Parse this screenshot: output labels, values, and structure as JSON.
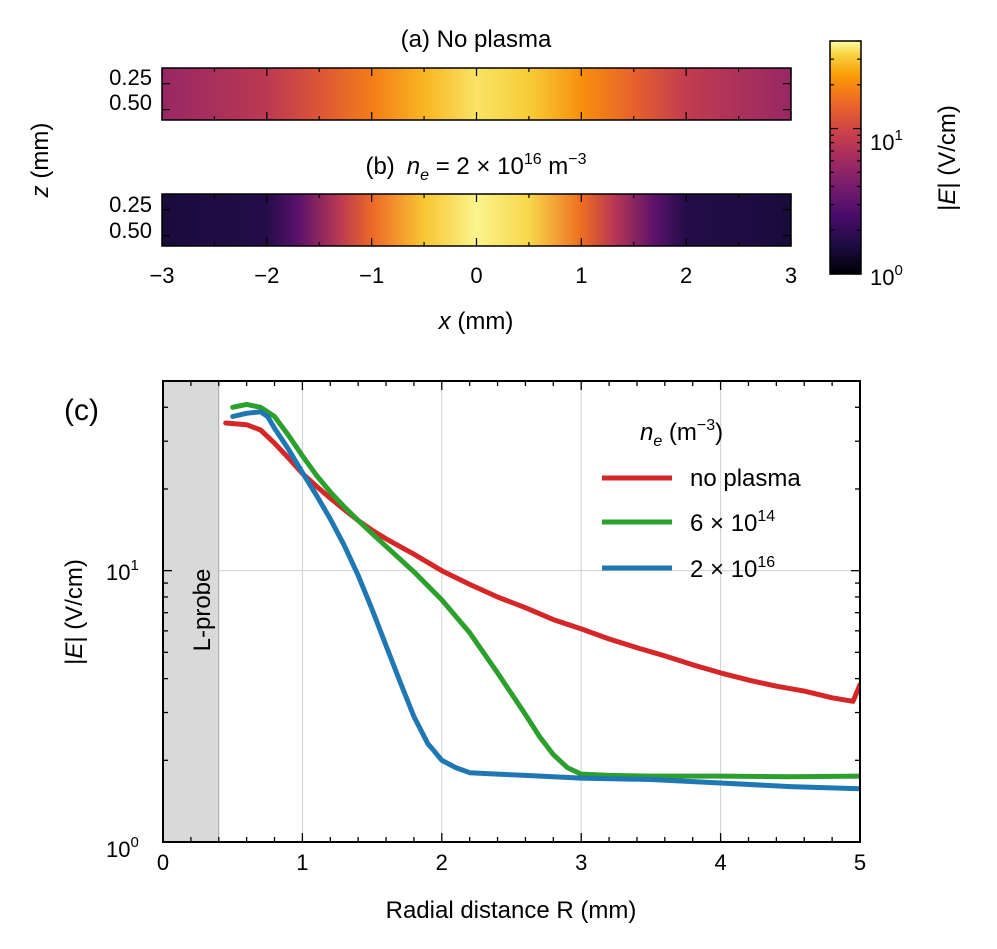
{
  "colors": {
    "no_plasma": "#d62728",
    "n6e14": "#2ca02c",
    "n2e16": "#1f77b4",
    "probe_fill": "#d9d9d9",
    "grid": "#d0d0d0"
  },
  "chart_data": [
    {
      "id": "a",
      "type": "heatmap",
      "title": "(a) No plasma",
      "xlabel": "x (mm)",
      "ylabel": "z (mm)",
      "xlim": [
        -3,
        3
      ],
      "ylim": [
        0.1,
        0.6
      ],
      "yticks": [
        "0.25",
        "0.50"
      ],
      "x_profile": [
        -3,
        -2,
        -1.5,
        -1,
        -0.5,
        0,
        0.5,
        1,
        1.5,
        2,
        3
      ],
      "value_profile": [
        5.5,
        8,
        12,
        18,
        27,
        35,
        31,
        21,
        14,
        8.5,
        5.5
      ],
      "cmap": "inferno",
      "cscale": "log"
    },
    {
      "id": "b",
      "type": "heatmap",
      "title_prefix": "(b)",
      "title_var": "n",
      "title_sub": "e",
      "title_eq": " = 2 × 10",
      "title_exp": "16",
      "title_unit": " m",
      "title_unit_exp": "−3",
      "xlabel": "x (mm)",
      "xticks": [
        "−3",
        "−2",
        "−1",
        "0",
        "1",
        "2",
        "3"
      ],
      "xlim": [
        -3,
        3
      ],
      "yticks": [
        "0.25",
        "0.50"
      ],
      "x_profile": [
        -3,
        -2,
        -1.7,
        -1.3,
        -1,
        -0.5,
        0,
        0.5,
        1,
        1.3,
        1.7,
        2,
        3
      ],
      "value_profile": [
        1.5,
        1.7,
        3,
        8,
        15,
        30,
        38,
        33,
        16,
        8,
        3,
        1.7,
        1.5
      ],
      "cmap": "inferno",
      "cscale": "log"
    },
    {
      "id": "colorbar",
      "type": "colorbar",
      "label_pre": "|",
      "label_var": "E",
      "label_post": "| (V/cm)",
      "range": [
        1,
        40
      ],
      "ticks": [
        {
          "base": "10",
          "exp": "0"
        },
        {
          "base": "10",
          "exp": "1"
        }
      ]
    },
    {
      "id": "c",
      "type": "line",
      "panel_label": "(c)",
      "xlabel": "Radial distance R (mm)",
      "ylabel_pre": "|",
      "ylabel_var": "E",
      "ylabel_post": "| (V/cm)",
      "xlim": [
        0,
        5
      ],
      "ylim": [
        1,
        50
      ],
      "yscale": "log",
      "xticks": [
        "0",
        "1",
        "2",
        "3",
        "4",
        "5"
      ],
      "yticks": [
        {
          "base": "10",
          "exp": "0"
        },
        {
          "base": "10",
          "exp": "1"
        }
      ],
      "grid": true,
      "shaded_region": {
        "x": [
          0,
          0.4
        ],
        "label": "L-probe"
      },
      "legend": {
        "title_var": "n",
        "title_sub": "e",
        "title_unit": " (m",
        "title_unit_exp": "−3",
        "title_close": ")",
        "location": "upper-right"
      },
      "series": [
        {
          "name": "no plasma",
          "color": "#d62728",
          "x": [
            0.45,
            0.6,
            0.7,
            0.8,
            0.9,
            1.0,
            1.1,
            1.2,
            1.3,
            1.4,
            1.5,
            1.6,
            1.8,
            2.0,
            2.2,
            2.4,
            2.6,
            2.8,
            3.0,
            3.2,
            3.4,
            3.6,
            3.8,
            4.0,
            4.2,
            4.4,
            4.6,
            4.8,
            4.95,
            5.0
          ],
          "y": [
            35,
            34.5,
            33,
            29.5,
            26,
            22.8,
            20.5,
            18.5,
            16.8,
            15.3,
            14.1,
            13.1,
            11.5,
            10.0,
            8.9,
            8.0,
            7.3,
            6.6,
            6.1,
            5.6,
            5.2,
            4.85,
            4.5,
            4.2,
            3.95,
            3.75,
            3.6,
            3.4,
            3.3,
            3.8
          ]
        },
        {
          "name": "6 × 10^14",
          "name_base": "6 × 10",
          "name_exp": "14",
          "color": "#2ca02c",
          "x": [
            0.5,
            0.6,
            0.7,
            0.8,
            0.9,
            1.0,
            1.1,
            1.2,
            1.3,
            1.4,
            1.5,
            1.6,
            1.8,
            2.0,
            2.2,
            2.4,
            2.6,
            2.7,
            2.8,
            2.9,
            3.0,
            3.2,
            3.5,
            4.0,
            4.5,
            5.0
          ],
          "y": [
            40,
            41,
            40,
            37,
            31.5,
            26.5,
            22.5,
            19.5,
            17.2,
            15.3,
            13.7,
            12.3,
            9.9,
            7.8,
            5.9,
            4.2,
            2.95,
            2.45,
            2.1,
            1.88,
            1.78,
            1.76,
            1.75,
            1.75,
            1.74,
            1.75
          ]
        },
        {
          "name": "2 × 10^16",
          "name_base": "2 × 10",
          "name_exp": "16",
          "color": "#1f77b4",
          "x": [
            0.5,
            0.6,
            0.7,
            0.75,
            0.8,
            0.9,
            1.0,
            1.1,
            1.2,
            1.3,
            1.4,
            1.5,
            1.6,
            1.7,
            1.8,
            1.9,
            1.95,
            2.0,
            2.1,
            2.2,
            2.4,
            2.6,
            3.0,
            3.5,
            4.0,
            4.5,
            5.0
          ],
          "y": [
            37,
            38,
            38.5,
            37,
            33.5,
            28,
            23,
            19,
            15.5,
            12.4,
            9.6,
            7.2,
            5.3,
            3.9,
            2.9,
            2.3,
            2.15,
            2.0,
            1.88,
            1.8,
            1.78,
            1.76,
            1.72,
            1.7,
            1.65,
            1.6,
            1.57
          ]
        }
      ]
    }
  ]
}
